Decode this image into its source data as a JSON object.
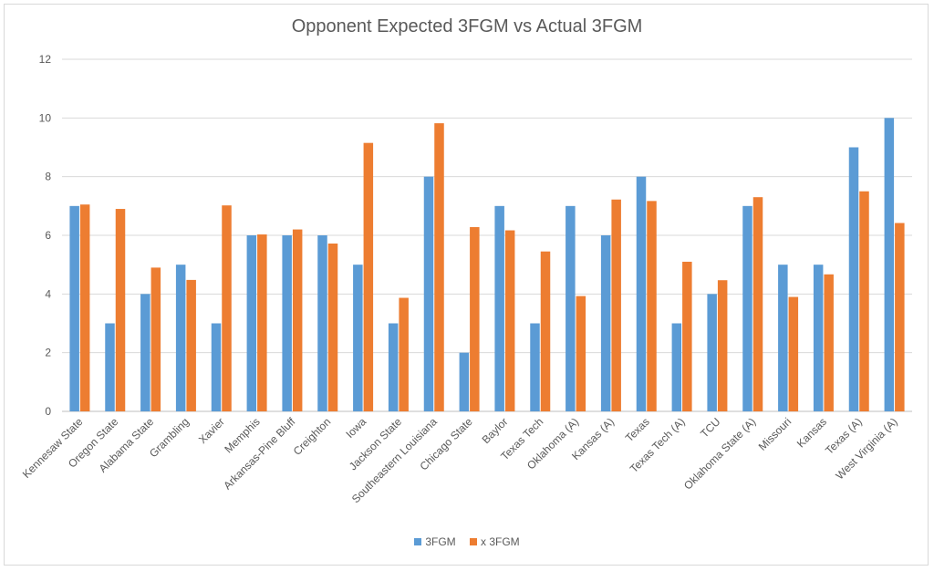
{
  "chart_data": {
    "type": "bar",
    "title": "Opponent Expected 3FGM vs Actual 3FGM",
    "xlabel": "",
    "ylabel": "",
    "ylim": [
      0,
      12
    ],
    "yticks": [
      0,
      2,
      4,
      6,
      8,
      10,
      12
    ],
    "grid": true,
    "legend_position": "bottom",
    "categories": [
      "Kennesaw State",
      "Oregon State",
      "Alabama State",
      "Grambling",
      "Xavier",
      "Memphis",
      "Arkansas-Pine Bluff",
      "Creighton",
      "Iowa",
      "Jackson State",
      "Southeastern Louisiana",
      "Chicago State",
      "Baylor",
      "Texas Tech",
      "Oklahoma (A)",
      "Kansas (A)",
      "Texas",
      "Texas Tech (A)",
      "TCU",
      "Oklahoma State (A)",
      "Missouri",
      "Kansas",
      "Texas (A)",
      "West Virginia (A)"
    ],
    "series": [
      {
        "name": "3FGM",
        "color": "#5b9bd5",
        "values": [
          7,
          3,
          4,
          5,
          3,
          6,
          6,
          6,
          5,
          3,
          8,
          2,
          7,
          3,
          7,
          6,
          8,
          3,
          4,
          7,
          5,
          5,
          9,
          10
        ]
      },
      {
        "name": "x 3FGM",
        "color": "#ed7d31",
        "values": [
          7.05,
          6.9,
          4.9,
          4.48,
          7.02,
          6.03,
          6.2,
          5.72,
          9.15,
          3.87,
          9.82,
          6.28,
          6.17,
          5.45,
          3.93,
          7.22,
          7.17,
          5.1,
          4.47,
          7.3,
          3.9,
          4.67,
          7.5,
          6.42
        ]
      }
    ]
  }
}
